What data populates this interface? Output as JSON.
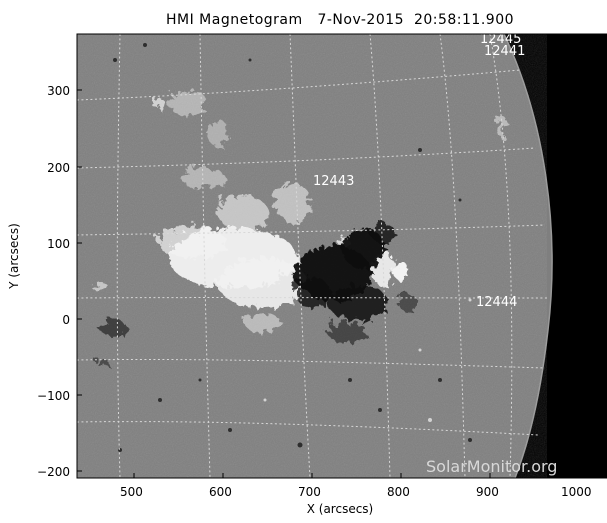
{
  "title": "HMI Magnetogram   7-Nov-2015  20:58:11.900",
  "credit": "SolarMonitor.org",
  "axes": {
    "xlabel": "X (arcsecs)",
    "ylabel": "Y (arcsecs)",
    "xticks": [
      "500",
      "600",
      "700",
      "800",
      "900",
      "1000"
    ],
    "yticks": [
      "300",
      "200",
      "100",
      "0",
      "−100",
      "−200"
    ]
  },
  "regions": [
    {
      "label": "12443"
    },
    {
      "label": "12444"
    },
    {
      "label": "12445"
    },
    {
      "label": "12441"
    }
  ],
  "colors": {
    "background": "#7f7f7f",
    "space": "#000000",
    "grid": "#d8d8d8"
  }
}
